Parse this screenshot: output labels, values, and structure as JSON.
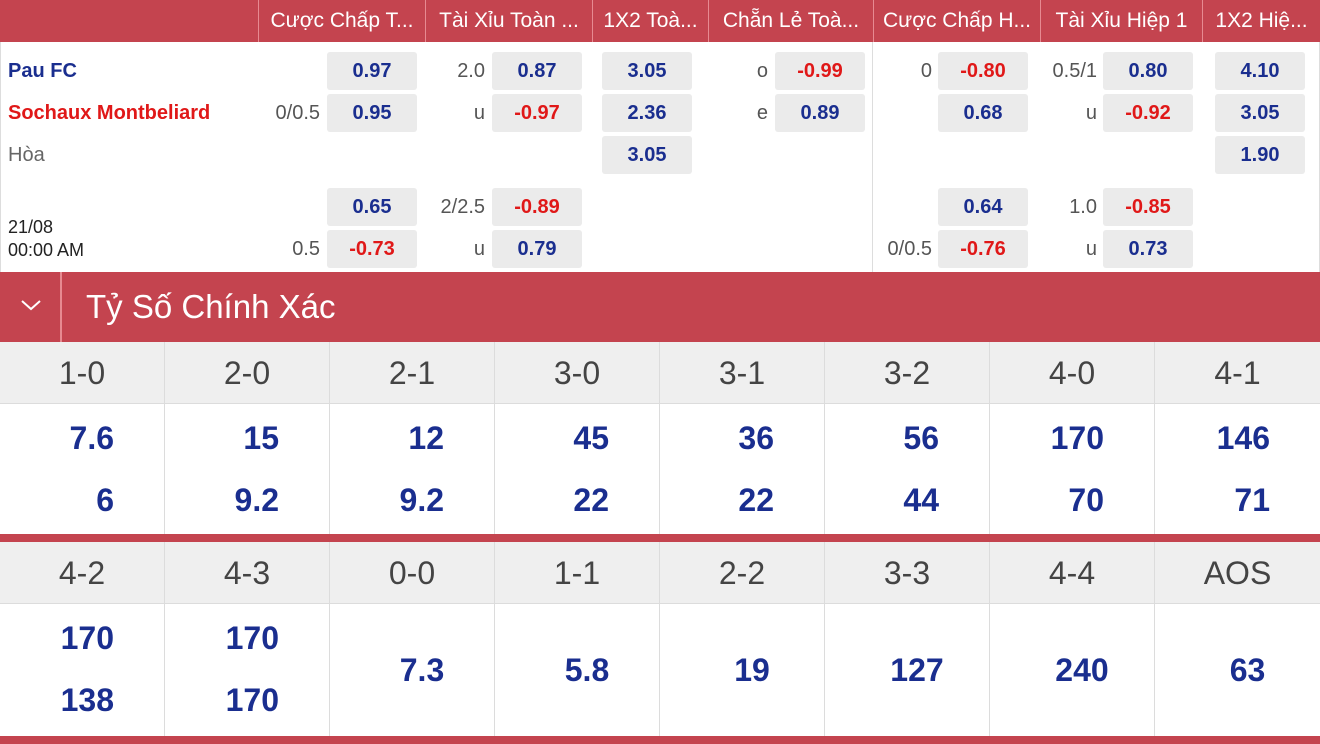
{
  "odds_header": [
    "Cược Chấp T...",
    "Tài Xỉu Toàn ...",
    "1X2 Toà...",
    "Chẵn Lẻ Toà...",
    "Cược Chấp H...",
    "Tài Xỉu Hiệp 1",
    "1X2 Hiệ..."
  ],
  "match": {
    "home": "Pau FC",
    "away": "Sochaux Montbeliard",
    "draw": "Hòa",
    "date": "21/08",
    "time": "00:00 AM"
  },
  "odds": {
    "ft_hdp": {
      "line1": "0/0.5",
      "home": "0.97",
      "away": "0.95",
      "line2": "0.5",
      "home2": "0.65",
      "away2": "-0.73"
    },
    "ft_ou": {
      "line1": "2.0",
      "over": "0.87",
      "under_label": "u",
      "under": "-0.97",
      "line2": "2/2.5",
      "over2": "-0.89",
      "under_label2": "u",
      "under2": "0.79"
    },
    "ft_1x2": {
      "home": "3.05",
      "away": "2.36",
      "draw": "3.05"
    },
    "ft_oe": {
      "odd_label": "o",
      "odd": "-0.99",
      "even_label": "e",
      "even": "0.89"
    },
    "h1_hdp": {
      "line1": "0",
      "home": "-0.80",
      "away": "0.68",
      "line2": "0/0.5",
      "home2": "0.64",
      "away2": "-0.76"
    },
    "h1_ou": {
      "line1": "0.5/1",
      "over": "0.80",
      "under_label": "u",
      "under": "-0.92",
      "line2": "1.0",
      "over2": "-0.85",
      "under_label2": "u",
      "under2": "0.73"
    },
    "h1_1x2": {
      "home": "4.10",
      "away": "3.05",
      "draw": "1.90"
    }
  },
  "section_title": "Tỷ Số Chính Xác",
  "correct_score_1": [
    {
      "score": "1-0",
      "home": "7.6",
      "away": "6"
    },
    {
      "score": "2-0",
      "home": "15",
      "away": "9.2"
    },
    {
      "score": "2-1",
      "home": "12",
      "away": "9.2"
    },
    {
      "score": "3-0",
      "home": "45",
      "away": "22"
    },
    {
      "score": "3-1",
      "home": "36",
      "away": "22"
    },
    {
      "score": "3-2",
      "home": "56",
      "away": "44"
    },
    {
      "score": "4-0",
      "home": "170",
      "away": "70"
    },
    {
      "score": "4-1",
      "home": "146",
      "away": "71"
    }
  ],
  "correct_score_2": [
    {
      "score": "4-2",
      "home": "170",
      "away": "138"
    },
    {
      "score": "4-3",
      "home": "170",
      "away": "170"
    },
    {
      "score": "0-0",
      "single": "7.3"
    },
    {
      "score": "1-1",
      "single": "5.8"
    },
    {
      "score": "2-2",
      "single": "19"
    },
    {
      "score": "3-3",
      "single": "127"
    },
    {
      "score": "4-4",
      "single": "240"
    },
    {
      "score": "AOS",
      "single": "63"
    }
  ],
  "colors": {
    "header_bg": "#c4444f",
    "positive": "#1a2e8f",
    "negative": "#e01818",
    "odd_box": "#ebebeb"
  }
}
